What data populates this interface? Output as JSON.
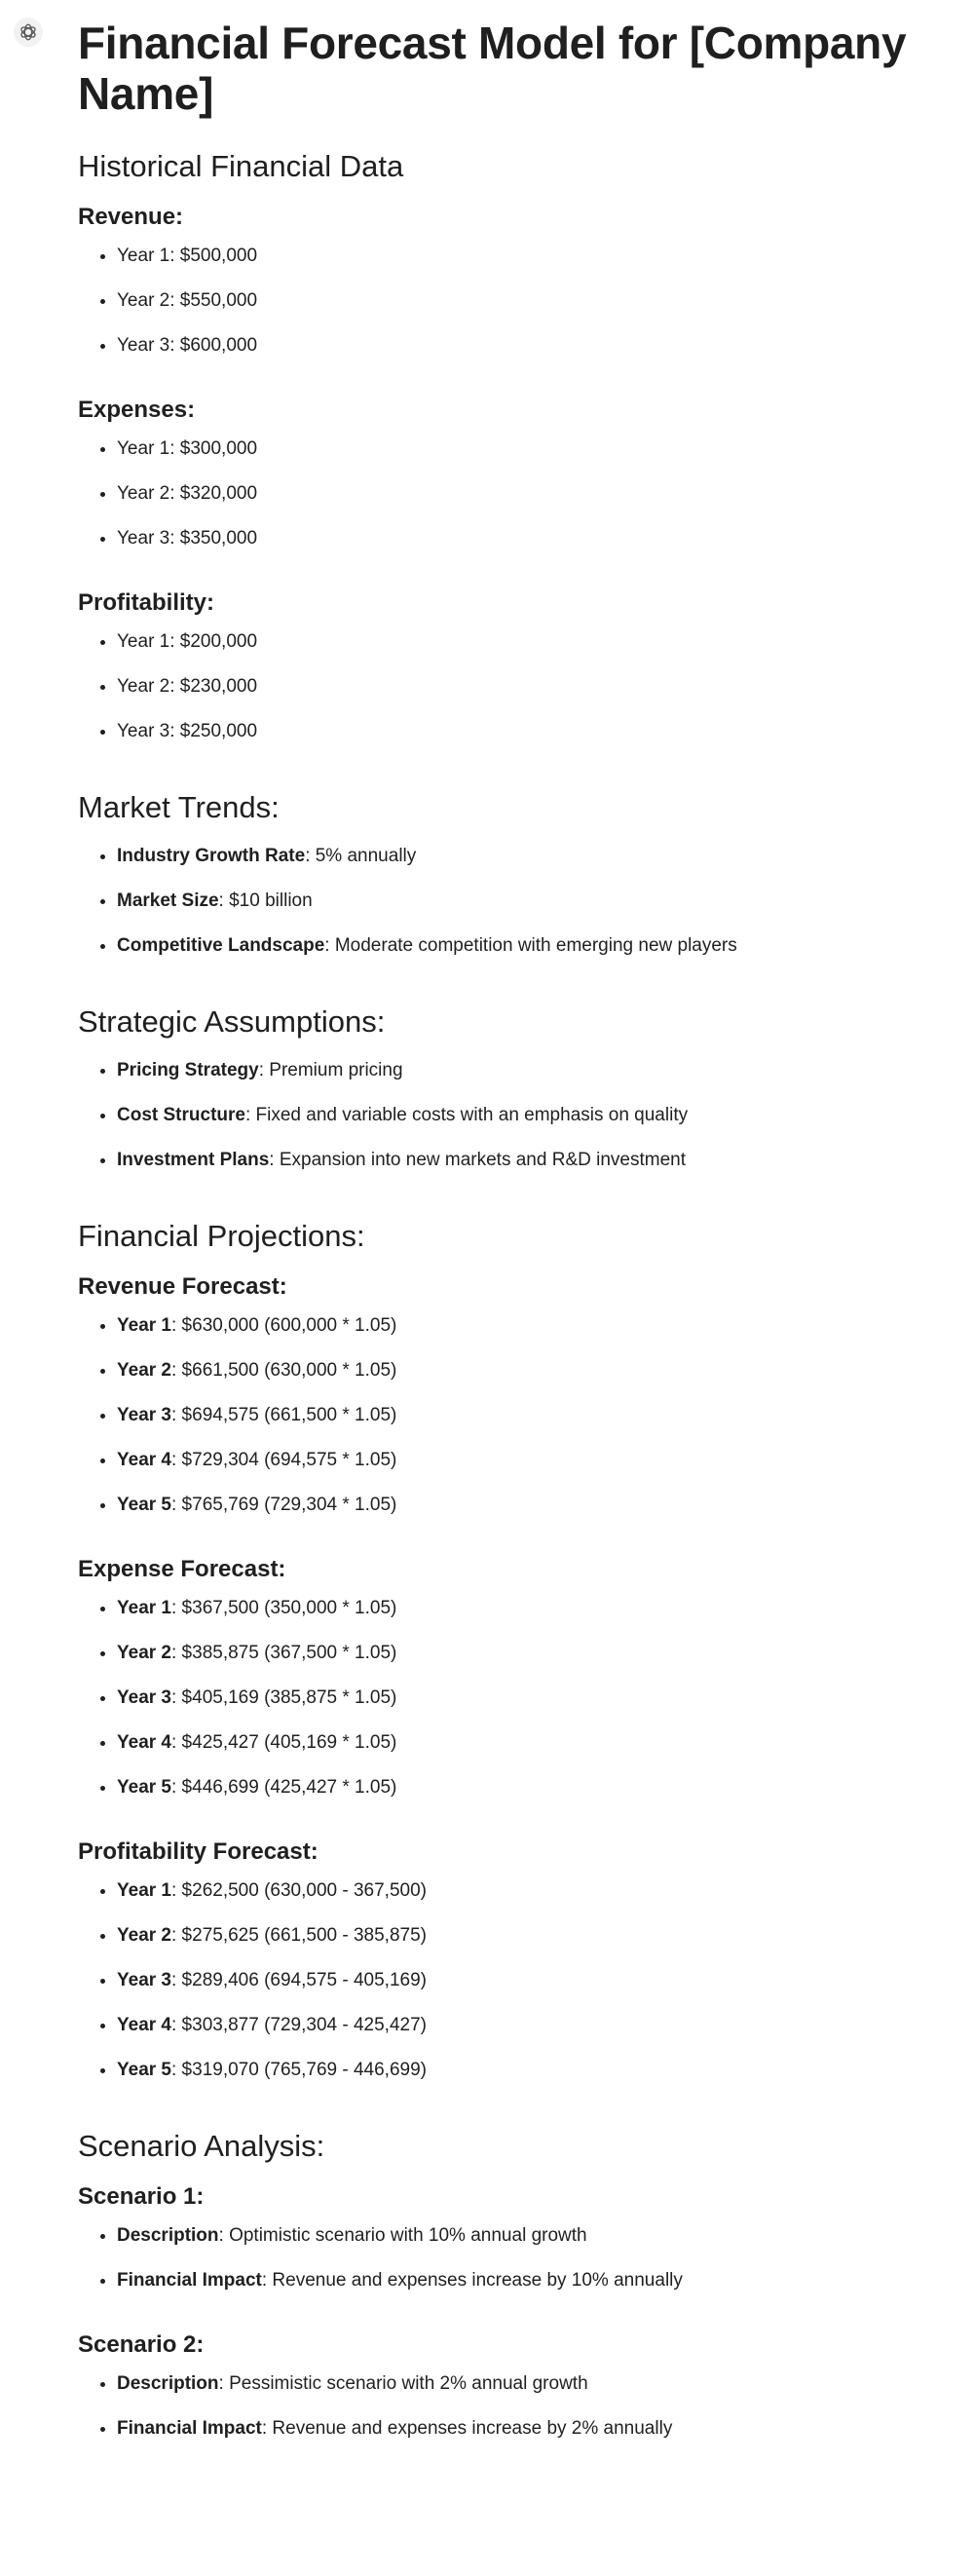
{
  "document": {
    "title": "Financial Forecast Model for [Company Name]",
    "historical": {
      "heading": "Historical Financial Data",
      "revenue": {
        "heading": "Revenue:",
        "items": [
          "Year 1: $500,000",
          "Year 2: $550,000",
          "Year 3: $600,000"
        ]
      },
      "expenses": {
        "heading": "Expenses:",
        "items": [
          "Year 1: $300,000",
          "Year 2: $320,000",
          "Year 3: $350,000"
        ]
      },
      "profitability": {
        "heading": "Profitability:",
        "items": [
          "Year 1: $200,000",
          "Year 2: $230,000",
          "Year 3: $250,000"
        ]
      }
    },
    "market_trends": {
      "heading": "Market Trends:",
      "items": [
        {
          "key": "Industry Growth Rate",
          "value": ": 5% annually"
        },
        {
          "key": "Market Size",
          "value": ": $10 billion"
        },
        {
          "key": "Competitive Landscape",
          "value": ": Moderate competition with emerging new players"
        }
      ]
    },
    "strategic_assumptions": {
      "heading": "Strategic Assumptions:",
      "items": [
        {
          "key": "Pricing Strategy",
          "value": ": Premium pricing"
        },
        {
          "key": "Cost Structure",
          "value": ": Fixed and variable costs with an emphasis on quality"
        },
        {
          "key": "Investment Plans",
          "value": ": Expansion into new markets and R&D investment"
        }
      ]
    },
    "projections": {
      "heading": "Financial Projections:",
      "revenue_forecast": {
        "heading": "Revenue Forecast:",
        "items": [
          {
            "key": "Year 1",
            "value": ": $630,000 (600,000 * 1.05)"
          },
          {
            "key": "Year 2",
            "value": ": $661,500 (630,000 * 1.05)"
          },
          {
            "key": "Year 3",
            "value": ": $694,575 (661,500 * 1.05)"
          },
          {
            "key": "Year 4",
            "value": ": $729,304 (694,575 * 1.05)"
          },
          {
            "key": "Year 5",
            "value": ": $765,769 (729,304 * 1.05)"
          }
        ]
      },
      "expense_forecast": {
        "heading": "Expense Forecast:",
        "items": [
          {
            "key": "Year 1",
            "value": ": $367,500 (350,000 * 1.05)"
          },
          {
            "key": "Year 2",
            "value": ": $385,875 (367,500 * 1.05)"
          },
          {
            "key": "Year 3",
            "value": ": $405,169 (385,875 * 1.05)"
          },
          {
            "key": "Year 4",
            "value": ": $425,427 (405,169 * 1.05)"
          },
          {
            "key": "Year 5",
            "value": ": $446,699 (425,427 * 1.05)"
          }
        ]
      },
      "profitability_forecast": {
        "heading": "Profitability Forecast:",
        "items": [
          {
            "key": "Year 1",
            "value": ": $262,500 (630,000 - 367,500)"
          },
          {
            "key": "Year 2",
            "value": ": $275,625 (661,500 - 385,875)"
          },
          {
            "key": "Year 3",
            "value": ": $289,406 (694,575 - 405,169)"
          },
          {
            "key": "Year 4",
            "value": ": $303,877 (729,304 - 425,427)"
          },
          {
            "key": "Year 5",
            "value": ": $319,070 (765,769 - 446,699)"
          }
        ]
      }
    },
    "scenario_analysis": {
      "heading": "Scenario Analysis:",
      "scenario_1": {
        "heading": "Scenario 1:",
        "items": [
          {
            "key": "Description",
            "value": ": Optimistic scenario with 10% annual growth"
          },
          {
            "key": "Financial Impact",
            "value": ": Revenue and expenses increase by 10% annually"
          }
        ]
      },
      "scenario_2": {
        "heading": "Scenario 2:",
        "items": [
          {
            "key": "Description",
            "value": ": Pessimistic scenario with 2% annual growth"
          },
          {
            "key": "Financial Impact",
            "value": ": Revenue and expenses increase by 2% annually"
          }
        ]
      }
    }
  },
  "icons": {
    "assistant_avatar": "openai-logo-icon"
  }
}
